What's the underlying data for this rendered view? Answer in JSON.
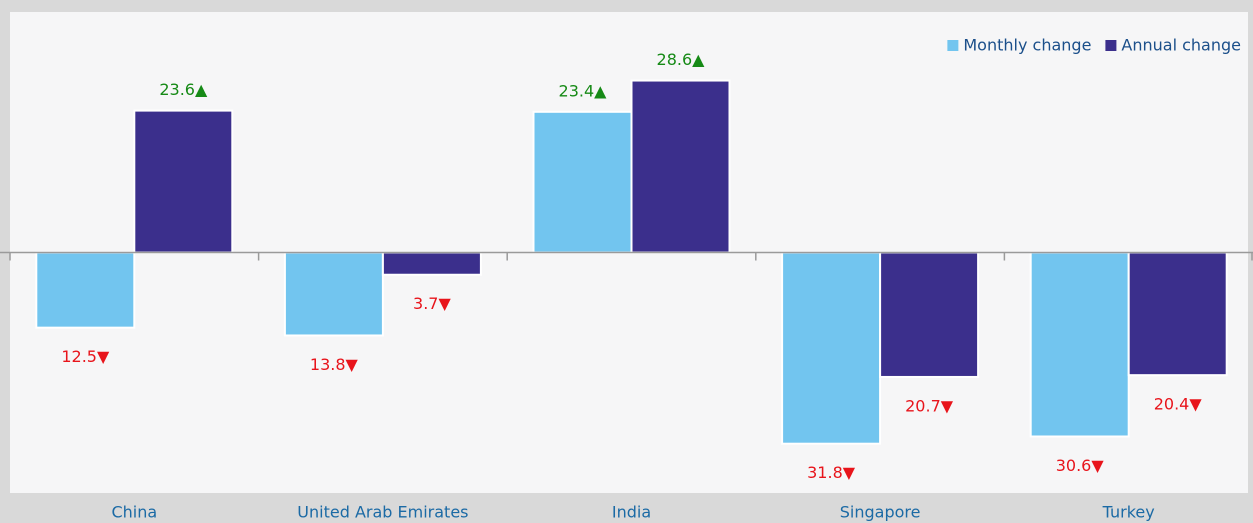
{
  "chart_data": {
    "type": "bar",
    "categories": [
      "China",
      "United Arab Emirates",
      "India",
      "Singapore",
      "Turkey"
    ],
    "series": [
      {
        "name": "Monthly change",
        "color": "#72c5ef",
        "values": [
          -12.5,
          -13.8,
          23.4,
          -31.8,
          -30.6
        ],
        "value_labels": [
          "12.5▼",
          "13.8▼",
          "23.4▲",
          "31.8▼",
          "30.6▼"
        ]
      },
      {
        "name": "Annual change",
        "color": "#3b2f8c",
        "values": [
          23.6,
          -3.7,
          28.6,
          -20.7,
          -20.4
        ],
        "value_labels": [
          "23.6▲",
          "3.7▼",
          "28.6▲",
          "20.7▼",
          "20.4▼"
        ]
      }
    ],
    "ylim": [
      -40,
      40
    ],
    "legend": "upper right"
  }
}
